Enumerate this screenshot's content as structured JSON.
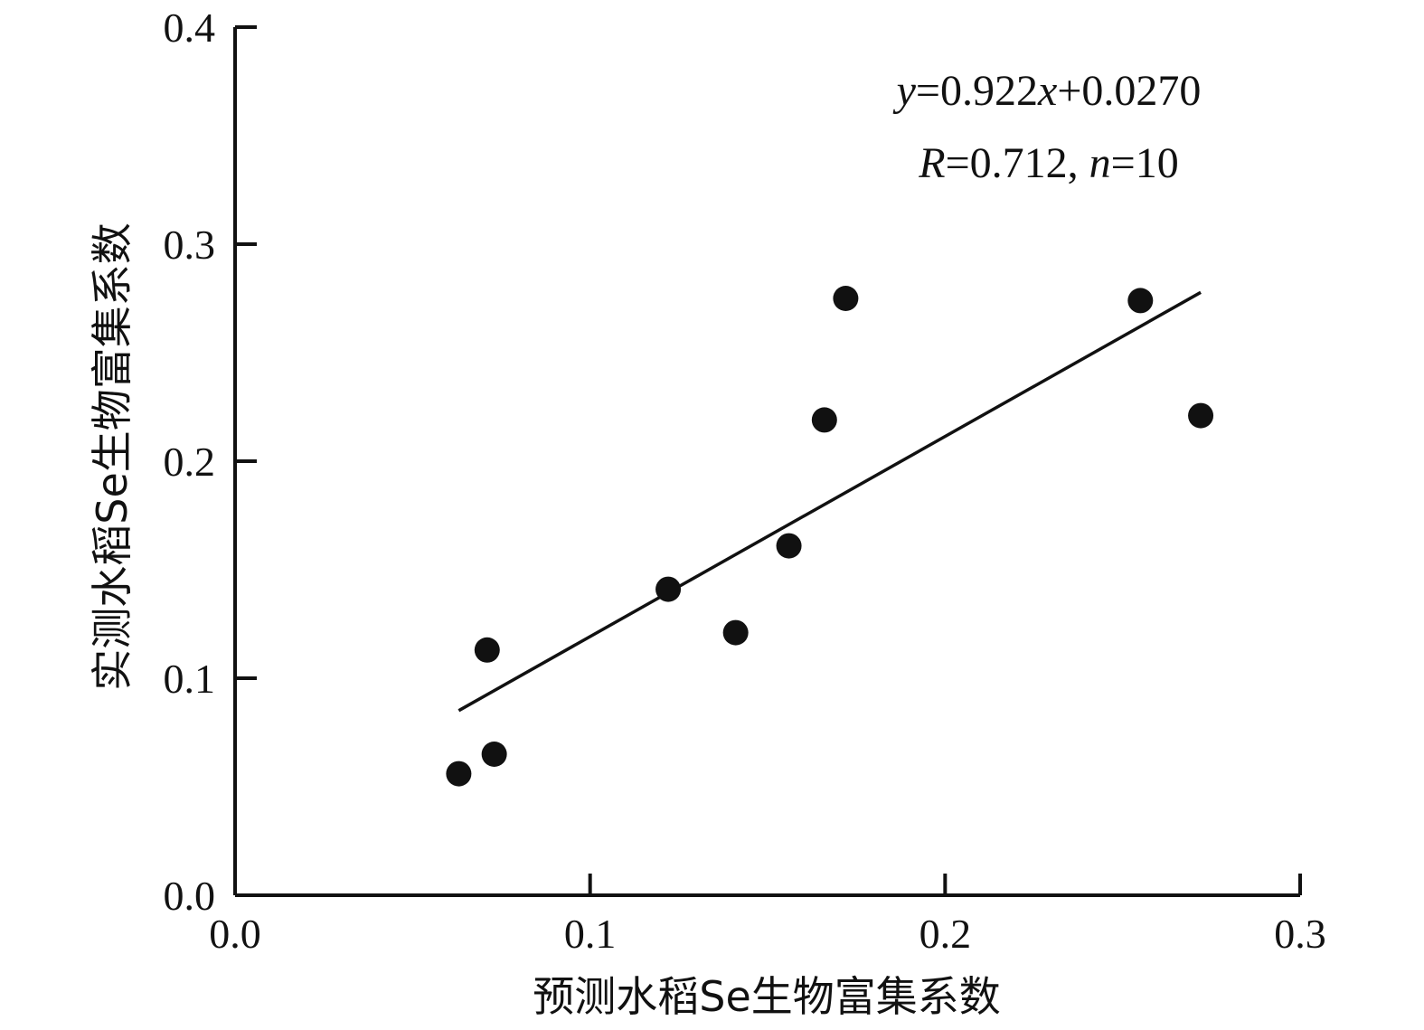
{
  "chart_data": {
    "type": "scatter",
    "xlabel": "预测水稻Se生物富集系数",
    "ylabel": "实测水稻Se生物富集系数",
    "xlim": [
      0,
      0.3
    ],
    "ylim": [
      0,
      0.4
    ],
    "x_ticks": [
      "0.0",
      "0.1",
      "0.2",
      "0.3"
    ],
    "y_ticks": [
      "0.0",
      "0.1",
      "0.2",
      "0.3",
      "0.4"
    ],
    "x_tick_values": [
      0,
      0.1,
      0.2,
      0.3
    ],
    "y_tick_values": [
      0,
      0.1,
      0.2,
      0.3,
      0.4
    ],
    "series": [
      {
        "x": [
          0.063,
          0.071,
          0.073,
          0.122,
          0.141,
          0.156,
          0.166,
          0.172,
          0.255,
          0.272
        ],
        "y": [
          0.056,
          0.113,
          0.065,
          0.141,
          0.121,
          0.161,
          0.219,
          0.275,
          0.274,
          0.221
        ]
      }
    ],
    "fit_line": {
      "slope": 0.922,
      "intercept": 0.027,
      "x_range": [
        0.063,
        0.272
      ]
    },
    "annotations": {
      "equation": {
        "y": "y",
        "eq1": "=0.922",
        "x": "x",
        "eq2": "+0.0270"
      },
      "stats": {
        "R": "R",
        "r_val": "=0.712, ",
        "n": "n",
        "n_val": "=10"
      }
    },
    "grid": false,
    "legend": "none",
    "marker_color": "#111111",
    "line_color": "#111111"
  }
}
